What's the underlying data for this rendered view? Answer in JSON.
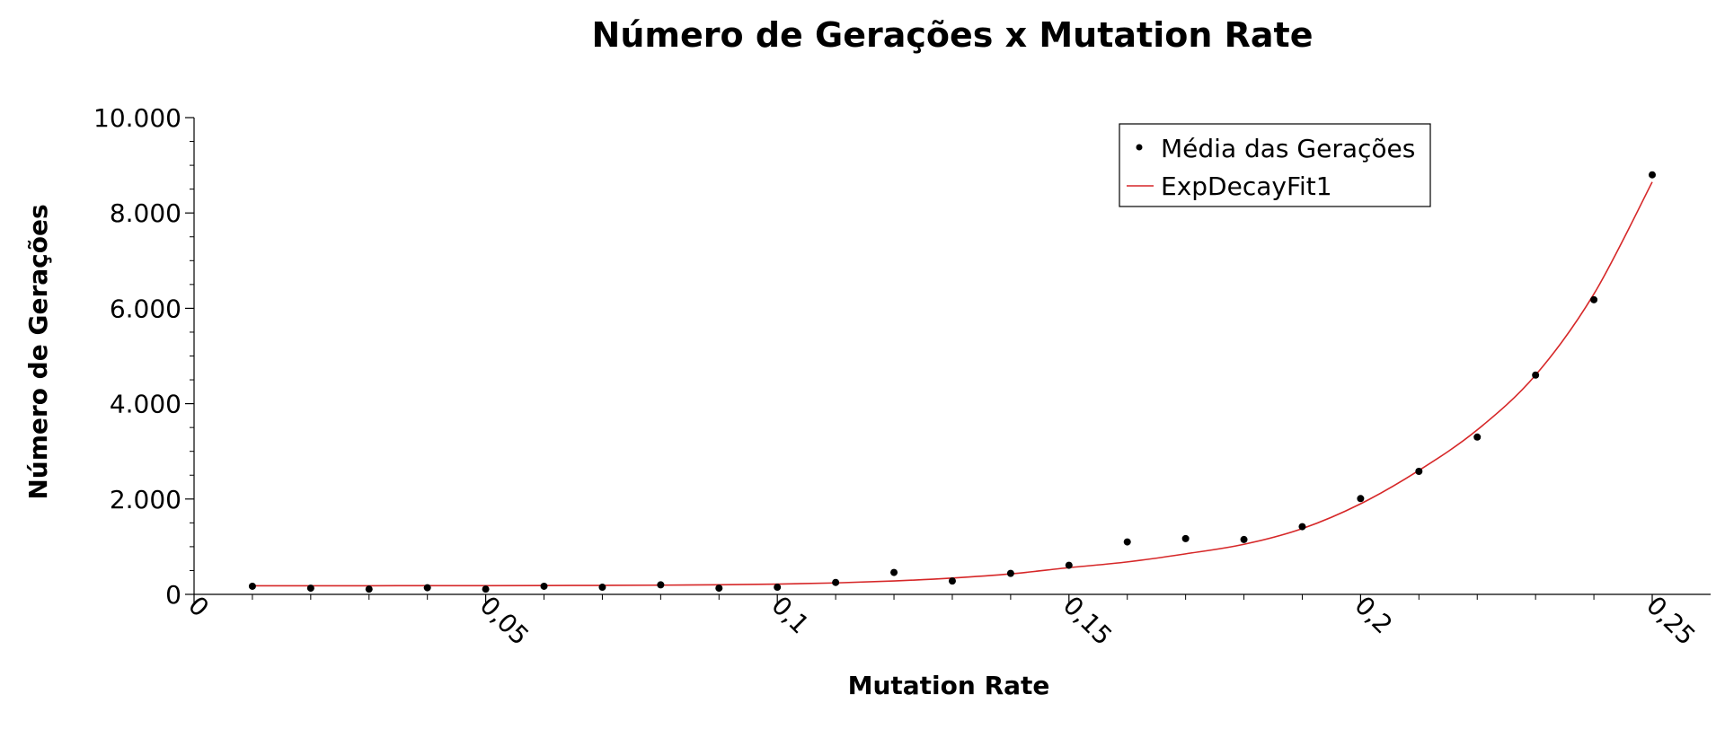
{
  "chart_data": {
    "type": "scatter",
    "title": "Número de Gerações x Mutation Rate",
    "xlabel": "Mutation Rate",
    "ylabel": "Número de Gerações",
    "xlim": [
      0,
      0.26
    ],
    "ylim": [
      0,
      10000
    ],
    "x_ticks": [
      {
        "value": 0,
        "label": "0"
      },
      {
        "value": 0.05,
        "label": "0,05"
      },
      {
        "value": 0.1,
        "label": "0,1"
      },
      {
        "value": 0.15,
        "label": "0,15"
      },
      {
        "value": 0.2,
        "label": "0,2"
      },
      {
        "value": 0.25,
        "label": "0,25"
      }
    ],
    "y_ticks": [
      {
        "value": 0,
        "label": "0"
      },
      {
        "value": 2000,
        "label": "2.000"
      },
      {
        "value": 4000,
        "label": "4.000"
      },
      {
        "value": 6000,
        "label": "6.000"
      },
      {
        "value": 8000,
        "label": "8.000"
      },
      {
        "value": 10000,
        "label": "10.000"
      }
    ],
    "legend_position": "top-right",
    "series": [
      {
        "name": "Média das Gerações",
        "kind": "points",
        "color": "#000000",
        "x": [
          0.01,
          0.02,
          0.03,
          0.04,
          0.05,
          0.06,
          0.07,
          0.08,
          0.09,
          0.1,
          0.11,
          0.12,
          0.13,
          0.14,
          0.15,
          0.16,
          0.17,
          0.18,
          0.19,
          0.2,
          0.21,
          0.22,
          0.23,
          0.24,
          0.25
        ],
        "y": [
          170,
          130,
          110,
          140,
          110,
          170,
          150,
          200,
          130,
          150,
          250,
          460,
          280,
          440,
          610,
          1100,
          1170,
          1150,
          1420,
          2010,
          2580,
          3300,
          4600,
          6180,
          8800
        ]
      },
      {
        "name": "ExpDecayFit1",
        "kind": "line",
        "color": "#d62728",
        "x": [
          0.01,
          0.02,
          0.03,
          0.04,
          0.05,
          0.06,
          0.07,
          0.08,
          0.09,
          0.1,
          0.11,
          0.12,
          0.13,
          0.14,
          0.15,
          0.16,
          0.17,
          0.18,
          0.19,
          0.2,
          0.21,
          0.22,
          0.23,
          0.24,
          0.25
        ],
        "y": [
          180,
          180,
          181,
          182,
          183,
          185,
          188,
          193,
          201,
          215,
          240,
          281,
          343,
          430,
          560,
          680,
          850,
          1050,
          1380,
          1900,
          2600,
          3450,
          4600,
          6300,
          8650
        ]
      }
    ]
  }
}
